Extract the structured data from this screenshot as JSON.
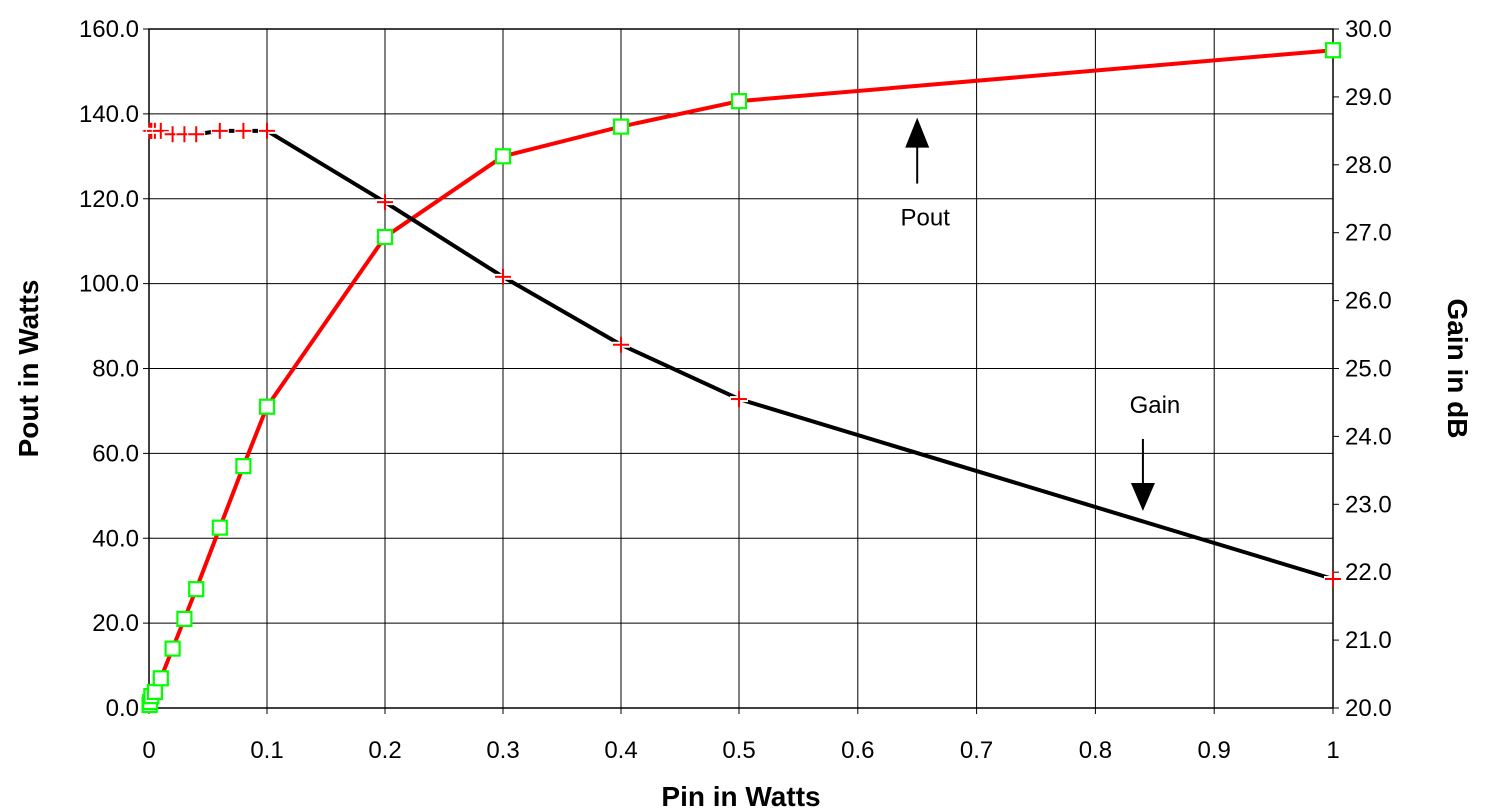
{
  "chart_data": {
    "type": "line",
    "xlabel": "Pin in Watts",
    "ylabel": "Pout in Watts",
    "y2label": "Gain in dB",
    "x_ticks": [
      "0",
      "0.1",
      "0.2",
      "0.3",
      "0.4",
      "0.5",
      "0.6",
      "0.7",
      "0.8",
      "0.9",
      "1"
    ],
    "y_ticks": [
      "0.0",
      "20.0",
      "40.0",
      "60.0",
      "80.0",
      "100.0",
      "120.0",
      "140.0",
      "160.0"
    ],
    "y2_ticks": [
      "20.0",
      "21.0",
      "22.0",
      "23.0",
      "24.0",
      "25.0",
      "26.0",
      "27.0",
      "28.0",
      "29.0",
      "30.0"
    ],
    "x_scale": "piecewise-linear: 0 to 0.5 evenly spaced, then 0.5 to 1 spans remaining width",
    "xlim": [
      0,
      1
    ],
    "ylim": [
      0,
      160
    ],
    "y2lim": [
      20,
      30
    ],
    "grid": true,
    "series": [
      {
        "name": "Pout",
        "axis": "left",
        "line_color": "#ff0000",
        "marker": "square",
        "marker_color": "#00ff00",
        "points": [
          [
            0.0005,
            0.7
          ],
          [
            0.001,
            1.4
          ],
          [
            0.002,
            2.8
          ],
          [
            0.005,
            3.8
          ],
          [
            0.01,
            7.0
          ],
          [
            0.02,
            14.0
          ],
          [
            0.03,
            21.0
          ],
          [
            0.04,
            28.0
          ],
          [
            0.06,
            42.5
          ],
          [
            0.08,
            57.0
          ],
          [
            0.1,
            71.0
          ],
          [
            0.2,
            111.0
          ],
          [
            0.3,
            130.0
          ],
          [
            0.4,
            137.0
          ],
          [
            0.5,
            143.0
          ],
          [
            1.0,
            155.0
          ]
        ]
      },
      {
        "name": "Gain",
        "axis": "right",
        "line_color": "#000000",
        "marker": "plus",
        "marker_color": "#ff0000",
        "points": [
          [
            0.0005,
            28.5
          ],
          [
            0.001,
            28.5
          ],
          [
            0.002,
            28.5
          ],
          [
            0.005,
            28.5
          ],
          [
            0.01,
            28.5
          ],
          [
            0.02,
            28.45
          ],
          [
            0.03,
            28.45
          ],
          [
            0.04,
            28.45
          ],
          [
            0.06,
            28.5
          ],
          [
            0.08,
            28.5
          ],
          [
            0.1,
            28.5
          ],
          [
            0.2,
            27.45
          ],
          [
            0.3,
            26.35
          ],
          [
            0.4,
            25.35
          ],
          [
            0.5,
            24.55
          ],
          [
            1.0,
            21.9
          ]
        ]
      }
    ],
    "annotations": [
      {
        "text": "Pout",
        "arrow": "up",
        "x": 0.65,
        "y": 133
      },
      {
        "text": "Gain",
        "arrow": "down",
        "x": 0.84,
        "y": 70
      }
    ]
  }
}
